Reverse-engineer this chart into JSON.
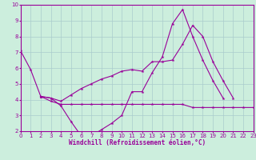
{
  "xlabel": "Windchill (Refroidissement éolien,°C)",
  "bg_color": "#cceedd",
  "line_color": "#990099",
  "xlim": [
    0,
    23
  ],
  "ylim": [
    2,
    10
  ],
  "yticks": [
    2,
    3,
    4,
    5,
    6,
    7,
    8,
    9,
    10
  ],
  "xticks": [
    0,
    1,
    2,
    3,
    4,
    5,
    6,
    7,
    8,
    9,
    10,
    11,
    12,
    13,
    14,
    15,
    16,
    17,
    18,
    19,
    20,
    21,
    22,
    23
  ],
  "series1_x": [
    0,
    1,
    2,
    3,
    4,
    5,
    6,
    7,
    8,
    9,
    10,
    11,
    12,
    13,
    14,
    15,
    16,
    17,
    18,
    19,
    20,
    21,
    22
  ],
  "series1_y": [
    7.1,
    5.9,
    4.2,
    4.1,
    3.6,
    2.6,
    1.7,
    1.7,
    2.1,
    2.5,
    3.0,
    4.5,
    4.5,
    5.7,
    6.7,
    8.8,
    9.7,
    8.0,
    6.5,
    5.2,
    4.1,
    null,
    null
  ],
  "series2_x": [
    2,
    3,
    4,
    5,
    6,
    7,
    8,
    9,
    10,
    11,
    12,
    13,
    14,
    15,
    16,
    17,
    18,
    19,
    20,
    21,
    22,
    23
  ],
  "series2_y": [
    4.2,
    4.1,
    3.9,
    4.3,
    4.7,
    5.0,
    5.3,
    5.5,
    5.8,
    5.9,
    5.8,
    6.4,
    6.4,
    6.5,
    7.5,
    8.7,
    8.0,
    6.4,
    5.2,
    4.1,
    null,
    null
  ],
  "series3_x": [
    2,
    3,
    4,
    5,
    6,
    7,
    8,
    9,
    10,
    11,
    12,
    13,
    14,
    15,
    16,
    17,
    18,
    19,
    20,
    21,
    22,
    23
  ],
  "series3_y": [
    4.2,
    3.9,
    3.7,
    3.7,
    3.7,
    3.7,
    3.7,
    3.7,
    3.7,
    3.7,
    3.7,
    3.7,
    3.7,
    3.7,
    3.7,
    3.5,
    3.5,
    3.5,
    3.5,
    3.5,
    3.5,
    3.5
  ],
  "grid_color": "#aacccc",
  "tick_fontsize": 5,
  "xlabel_fontsize": 5.5
}
